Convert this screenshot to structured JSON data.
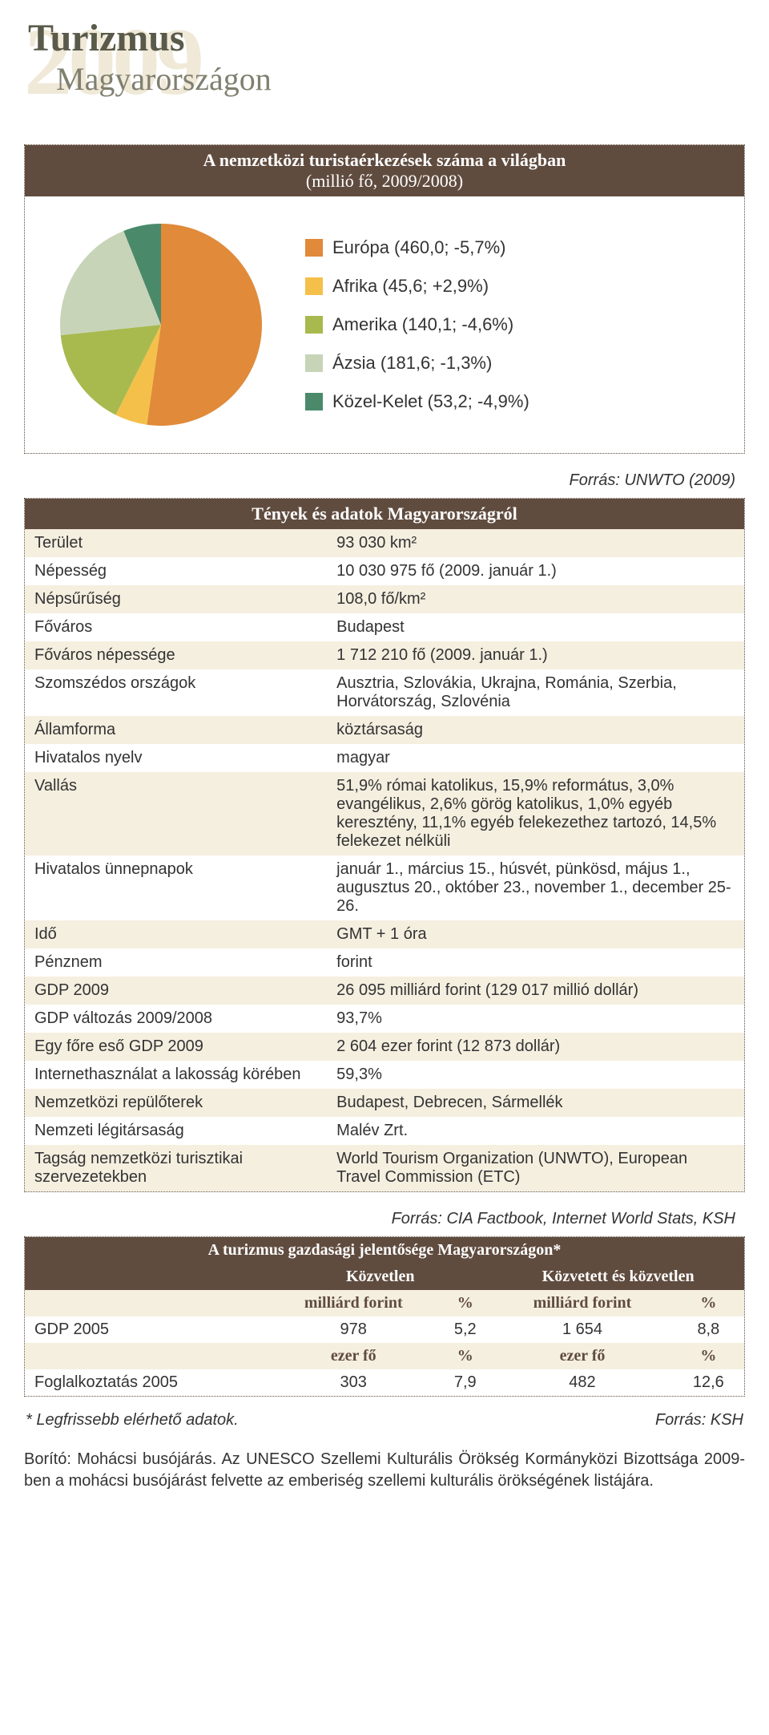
{
  "header": {
    "year_bg": "2009",
    "title": "Turizmus",
    "subtitle": "Magyarországon"
  },
  "pie": {
    "title_line1": "A nemzetközi turistaérkezések száma a világban",
    "title_line2": "(millió fő, 2009/2008)",
    "slices": [
      {
        "label": "Európa (460,0; -5,7%)",
        "value": 460.0,
        "color": "#e08a3a"
      },
      {
        "label": "Afrika (45,6; +2,9%)",
        "value": 45.6,
        "color": "#f5c04a"
      },
      {
        "label": "Amerika (140,1; -4,6%)",
        "value": 140.1,
        "color": "#a8b94e"
      },
      {
        "label": "Ázsia (181,6; -1,3%)",
        "value": 181.6,
        "color": "#c8d4b8"
      },
      {
        "label": "Közel-Kelet (53,2; -4,9%)",
        "value": 53.2,
        "color": "#4a8a6a"
      }
    ],
    "source": "Forrás: UNWTO (2009)"
  },
  "facts": {
    "title": "Tények és adatok Magyarországról",
    "rows": [
      {
        "k": "Terület",
        "v": "93 030 km²"
      },
      {
        "k": "Népesség",
        "v": "10 030 975 fő (2009. január 1.)"
      },
      {
        "k": "Népsűrűség",
        "v": "108,0 fő/km²"
      },
      {
        "k": "Főváros",
        "v": "Budapest"
      },
      {
        "k": "Főváros népessége",
        "v": "1 712 210 fő (2009. január 1.)"
      },
      {
        "k": "Szomszédos országok",
        "v": "Ausztria, Szlovákia, Ukrajna, Románia, Szerbia, Horvátország, Szlovénia"
      },
      {
        "k": "Államforma",
        "v": "köztársaság"
      },
      {
        "k": "Hivatalos nyelv",
        "v": "magyar"
      },
      {
        "k": "Vallás",
        "v": "51,9% római katolikus, 15,9% református, 3,0% evangélikus, 2,6% görög katolikus, 1,0% egyéb keresztény, 11,1% egyéb felekezethez tartozó, 14,5% felekezet nélküli"
      },
      {
        "k": "Hivatalos ünnepnapok",
        "v": "január 1., március 15., húsvét, pünkösd, május 1., augusztus 20., október 23., november 1., december 25-26."
      },
      {
        "k": "Idő",
        "v": "GMT + 1 óra"
      },
      {
        "k": "Pénznem",
        "v": "forint"
      },
      {
        "k": "GDP 2009",
        "v": "26 095 milliárd forint (129 017 millió dollár)"
      },
      {
        "k": "GDP változás 2009/2008",
        "v": "93,7%"
      },
      {
        "k": "Egy főre eső GDP 2009",
        "v": "2 604 ezer forint (12 873 dollár)"
      },
      {
        "k": "Internethasználat a lakosság körében",
        "v": "59,3%"
      },
      {
        "k": "Nemzetközi repülőterek",
        "v": "Budapest, Debrecen, Sármellék"
      },
      {
        "k": "Nemzeti légitársaság",
        "v": "Malév Zrt."
      },
      {
        "k": "Tagság nemzetközi turisztikai szervezetekben",
        "v": "World Tourism Organization (UNWTO), European Travel Commission (ETC)"
      }
    ],
    "source": "Forrás: CIA Factbook, Internet World Stats, KSH"
  },
  "econ": {
    "title": "A turizmus gazdasági jelentősége Magyarországon*",
    "col_group_left": "Közvetlen",
    "col_group_right": "Közvetett és közvetlen",
    "unit_row1": [
      "milliárd forint",
      "%",
      "milliárd forint",
      "%"
    ],
    "data1": {
      "label": "GDP 2005",
      "a": "978",
      "b": "5,2",
      "c": "1 654",
      "d": "8,8"
    },
    "unit_row2": [
      "ezer fő",
      "%",
      "ezer fő",
      "%"
    ],
    "data2": {
      "label": "Foglalkoztatás 2005",
      "a": "303",
      "b": "7,9",
      "c": "482",
      "d": "12,6"
    },
    "footnote_left": "* Legfrissebb elérhető adatok.",
    "footnote_right": "Forrás: KSH"
  },
  "footer": "Borító: Mohácsi busójárás. Az UNESCO Szellemi Kulturális Örökség Kormányközi Bizottsága 2009-ben a mohácsi busójárást felvette az emberiség szellemi kulturális örökségének listájára."
}
